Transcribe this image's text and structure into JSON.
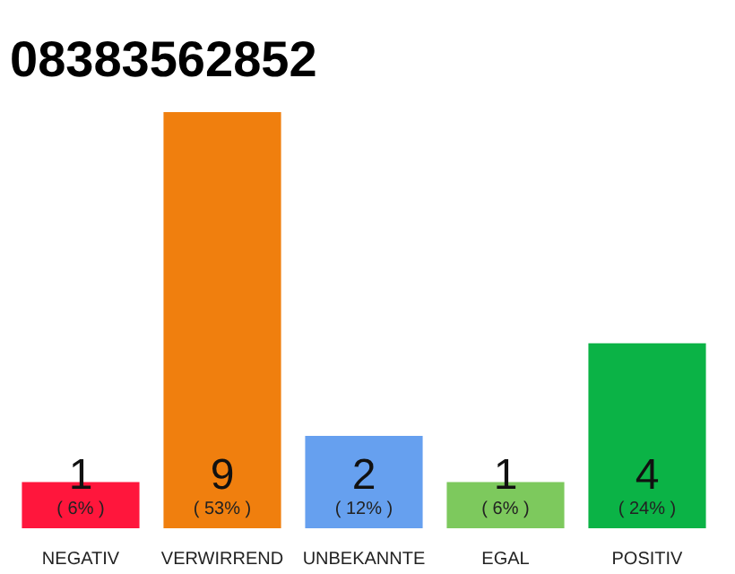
{
  "chart_data": {
    "type": "bar",
    "title": "08383562852",
    "categories": [
      "NEGATIV",
      "VERWIRREND",
      "UNBEKANNTE",
      "EGAL",
      "POSITIV"
    ],
    "values": [
      1,
      9,
      2,
      1,
      4
    ],
    "colors": [
      "#ff163c",
      "#f07f0e",
      "#66a0ef",
      "#7dc95d",
      "#0bb346"
    ],
    "ylim": [
      0,
      9
    ],
    "tick_labels": "x",
    "data_labels": true,
    "grid": false,
    "annotations": [
      "( 6% )",
      "( 53% )",
      "( 12% )",
      "( 6% )",
      "( 24% )"
    ]
  }
}
